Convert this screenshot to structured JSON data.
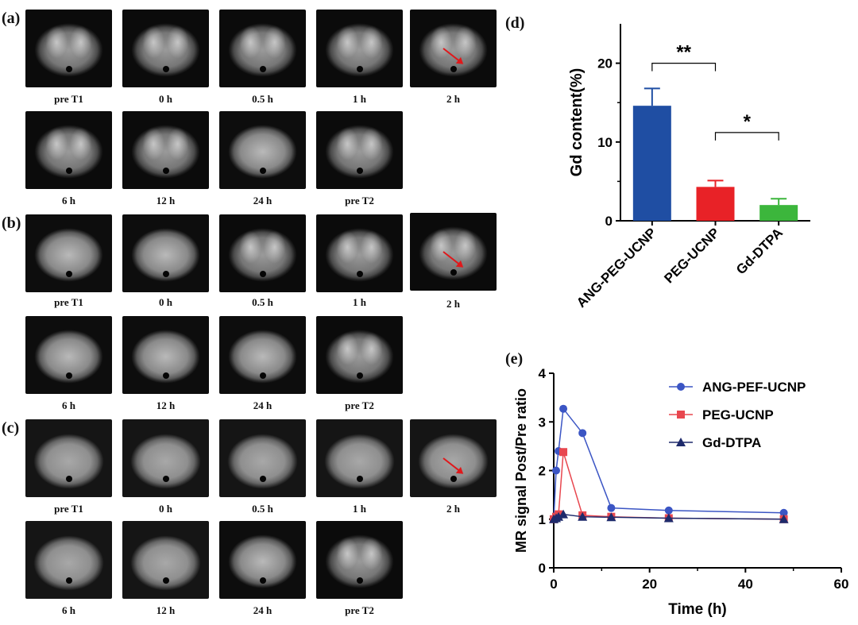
{
  "panels": {
    "a": "(a)",
    "b": "(b)",
    "c": "(c)",
    "d": "(d)",
    "e": "(e)"
  },
  "mri_rows": {
    "a_row1": [
      "pre T1",
      "0 h",
      "0.5 h",
      "1 h",
      "2 h"
    ],
    "a_row2": [
      "6 h",
      "12 h",
      "24 h",
      "pre T2"
    ],
    "b_row1": [
      "pre T1",
      "0 h",
      "0.5 h",
      "1 h",
      "2 h"
    ],
    "b_row2": [
      "6 h",
      "12 h",
      "24 h",
      "pre T2"
    ],
    "c_row1": [
      "pre T1",
      "0 h",
      "0.5 h",
      "1 h",
      "2 h"
    ],
    "c_row2": [
      "6 h",
      "12 h",
      "24 h",
      "pre T2"
    ]
  },
  "chart_data": [
    {
      "type": "bar",
      "panel": "(d)",
      "categories": [
        "ANG-PEG-UCNP",
        "PEG-UCNP",
        "Gd-DTPA"
      ],
      "values": [
        14.6,
        4.3,
        2.0
      ],
      "errors": [
        2.2,
        0.8,
        0.8
      ],
      "colors": [
        "#1f4ea3",
        "#e82227",
        "#3cb63c"
      ],
      "ylabel": "Gd content(%)",
      "ylim": [
        0,
        25
      ],
      "yticks": [
        0,
        10,
        20
      ],
      "significance": [
        {
          "from": 0,
          "to": 1,
          "label": "**"
        },
        {
          "from": 1,
          "to": 2,
          "label": "*"
        }
      ]
    },
    {
      "type": "line",
      "panel": "(e)",
      "xlabel": "Time (h)",
      "ylabel": "MR signal Post/Pre ratio",
      "xlim": [
        0,
        60
      ],
      "ylim": [
        0,
        4
      ],
      "xticks": [
        0,
        20,
        40,
        60
      ],
      "yticks": [
        0,
        1,
        2,
        3,
        4
      ],
      "series": [
        {
          "name": "ANG-PEF-UCNP",
          "color": "#3b55c4",
          "marker": "circle",
          "x": [
            0,
            0.5,
            1,
            2,
            6,
            12,
            24,
            48
          ],
          "y": [
            1.0,
            2.0,
            2.4,
            3.27,
            2.77,
            1.23,
            1.18,
            1.13
          ]
        },
        {
          "name": "PEG-UCNP",
          "color": "#e8474f",
          "marker": "square",
          "x": [
            0,
            0.5,
            1,
            2,
            6,
            12,
            24,
            48
          ],
          "y": [
            1.0,
            1.05,
            1.1,
            2.38,
            1.08,
            1.05,
            1.02,
            1.0
          ]
        },
        {
          "name": "Gd-DTPA",
          "color": "#1e2a6b",
          "marker": "triangle",
          "x": [
            0,
            0.5,
            1,
            2,
            6,
            12,
            24,
            48
          ],
          "y": [
            1.0,
            1.02,
            1.05,
            1.1,
            1.05,
            1.04,
            1.02,
            1.0
          ]
        }
      ]
    }
  ]
}
